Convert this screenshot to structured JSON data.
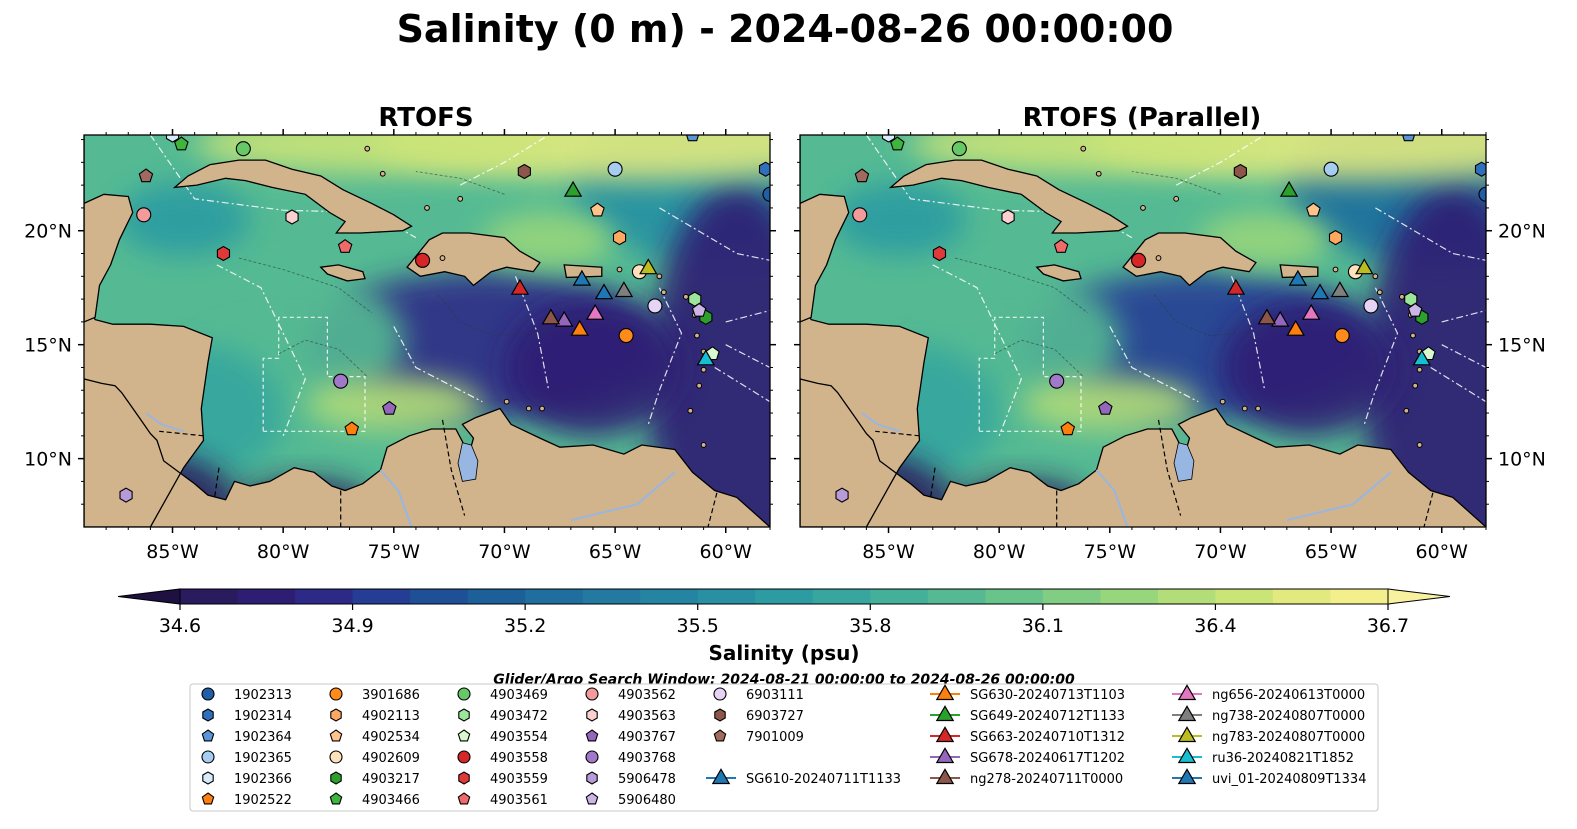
{
  "title": "Salinity (0 m) - 2024-08-26 00:00:00",
  "panels": [
    {
      "title": "RTOFS",
      "variant": "a"
    },
    {
      "title": "RTOFS (Parallel)",
      "variant": "b"
    }
  ],
  "map": {
    "extent_lon": [
      -89,
      -58
    ],
    "extent_lat": [
      7,
      24.2
    ],
    "lon_ticks": [
      {
        "value": -85,
        "label": "85°W"
      },
      {
        "value": -80,
        "label": "80°W"
      },
      {
        "value": -75,
        "label": "75°W"
      },
      {
        "value": -70,
        "label": "70°W"
      },
      {
        "value": -65,
        "label": "65°W"
      },
      {
        "value": -60,
        "label": "60°W"
      }
    ],
    "lat_ticks": [
      {
        "value": 10,
        "label": "10°N"
      },
      {
        "value": 15,
        "label": "15°N"
      },
      {
        "value": 20,
        "label": "20°N"
      }
    ],
    "land_color": "#d2b48c",
    "lake_color": "#97b6e1"
  },
  "colorbar": {
    "label": "Salinity (psu)",
    "min": 34.6,
    "max": 36.7,
    "ticks": [
      "34.6",
      "34.9",
      "35.2",
      "35.5",
      "35.8",
      "36.1",
      "36.4",
      "36.7"
    ],
    "colors": [
      "#2a1a5e",
      "#2d1e73",
      "#2d2a87",
      "#253d95",
      "#1f4f97",
      "#1c5f99",
      "#1f6e9d",
      "#23799f",
      "#2584a1",
      "#2890a2",
      "#2c9ba2",
      "#36a69f",
      "#44b09a",
      "#55ba93",
      "#69c48b",
      "#80cd83",
      "#98d67c",
      "#b2dd78",
      "#cbe478",
      "#e2ea7f",
      "#f3ef8c"
    ]
  },
  "legend": {
    "window_text": "Glider/Argo Search Window: 2024-08-21 00:00:00 to 2024-08-26 00:00:00",
    "entries": [
      {
        "label": "1902313",
        "marker": "circle",
        "color": "#1f5fa8"
      },
      {
        "label": "1902314",
        "marker": "hexagon",
        "color": "#2f6fbd"
      },
      {
        "label": "1902364",
        "marker": "pentagon",
        "color": "#5a95d8"
      },
      {
        "label": "1902365",
        "marker": "circle",
        "color": "#a6cdf0"
      },
      {
        "label": "1902366",
        "marker": "hexagon",
        "color": "#d8ebfb"
      },
      {
        "label": "1902522",
        "marker": "pentagon",
        "color": "#ff7f0e"
      },
      {
        "label": "3901686",
        "marker": "circle",
        "color": "#ff8c1a"
      },
      {
        "label": "4902113",
        "marker": "hexagon",
        "color": "#ffa860"
      },
      {
        "label": "4902534",
        "marker": "pentagon",
        "color": "#ffc48c"
      },
      {
        "label": "4902609",
        "marker": "circle",
        "color": "#ffe2bd"
      },
      {
        "label": "4903217",
        "marker": "hexagon",
        "color": "#2ca02c"
      },
      {
        "label": "4903466",
        "marker": "pentagon",
        "color": "#3fb43f"
      },
      {
        "label": "4903469",
        "marker": "circle",
        "color": "#66c866"
      },
      {
        "label": "4903472",
        "marker": "hexagon",
        "color": "#9be69b"
      },
      {
        "label": "4903554",
        "marker": "pentagon",
        "color": "#d8f8d0"
      },
      {
        "label": "4903558",
        "marker": "circle",
        "color": "#d62728"
      },
      {
        "label": "4903559",
        "marker": "hexagon",
        "color": "#e0393a"
      },
      {
        "label": "4903561",
        "marker": "pentagon",
        "color": "#f06a6a"
      },
      {
        "label": "4903562",
        "marker": "circle",
        "color": "#f39a9a"
      },
      {
        "label": "4903563",
        "marker": "hexagon",
        "color": "#fbd0d0"
      },
      {
        "label": "4903767",
        "marker": "pentagon",
        "color": "#9467bd"
      },
      {
        "label": "4903768",
        "marker": "circle",
        "color": "#a07ac8"
      },
      {
        "label": "5906478",
        "marker": "hexagon",
        "color": "#b79ad8"
      },
      {
        "label": "5906480",
        "marker": "pentagon",
        "color": "#cdb5e8"
      },
      {
        "label": "6903111",
        "marker": "circle",
        "color": "#e6d4f6"
      },
      {
        "label": "6903727",
        "marker": "hexagon",
        "color": "#8c564b"
      },
      {
        "label": "7901009",
        "marker": "pentagon",
        "color": "#a06a5f"
      },
      {
        "label": "SG610-20240711T1133",
        "marker": "triangle-line",
        "color": "#1f77b4"
      },
      {
        "label": "SG630-20240713T1103",
        "marker": "triangle-line",
        "color": "#ff7f0e"
      },
      {
        "label": "SG649-20240712T1133",
        "marker": "triangle-line",
        "color": "#2ca02c"
      },
      {
        "label": "SG663-20240710T1312",
        "marker": "triangle-line",
        "color": "#d62728"
      },
      {
        "label": "SG678-20240617T1202",
        "marker": "triangle-line",
        "color": "#9467bd"
      },
      {
        "label": "ng278-20240711T0000",
        "marker": "triangle-line",
        "color": "#8c564b"
      },
      {
        "label": "ng656-20240613T0000",
        "marker": "triangle-line",
        "color": "#e377c2"
      },
      {
        "label": "ng738-20240807T0000",
        "marker": "triangle-line",
        "color": "#7f7f7f"
      },
      {
        "label": "ng783-20240807T0000",
        "marker": "triangle-line",
        "color": "#bcbd22"
      },
      {
        "label": "ru36-20240821T1852",
        "marker": "triangle-line",
        "color": "#17becf"
      },
      {
        "label": "uvi_01-20240809T1334",
        "marker": "triangle-line",
        "color": "#1f77b4"
      }
    ]
  },
  "platforms": [
    {
      "id": "1902313",
      "lon": -58.0,
      "lat": 21.6
    },
    {
      "id": "1902314",
      "lon": -58.2,
      "lat": 22.7
    },
    {
      "id": "1902364",
      "lon": -61.5,
      "lat": 24.2
    },
    {
      "id": "1902365",
      "lon": -65.0,
      "lat": 22.7
    },
    {
      "id": "1902366",
      "lon": -85.0,
      "lat": 24.2
    },
    {
      "id": "1902522",
      "lon": -76.9,
      "lat": 11.3
    },
    {
      "id": "3901686",
      "lon": -64.5,
      "lat": 15.4
    },
    {
      "id": "4902113",
      "lon": -64.8,
      "lat": 19.7
    },
    {
      "id": "4902534",
      "lon": -65.8,
      "lat": 20.9
    },
    {
      "id": "4902609",
      "lon": -63.9,
      "lat": 18.2
    },
    {
      "id": "4903217",
      "lon": -60.9,
      "lat": 16.2
    },
    {
      "id": "4903466",
      "lon": -84.6,
      "lat": 23.8
    },
    {
      "id": "4903469",
      "lon": -81.8,
      "lat": 23.6
    },
    {
      "id": "4903472",
      "lon": -61.4,
      "lat": 17.0
    },
    {
      "id": "4903554",
      "lon": -60.6,
      "lat": 14.6
    },
    {
      "id": "4903558",
      "lon": -73.7,
      "lat": 18.7
    },
    {
      "id": "4903559",
      "lon": -82.7,
      "lat": 19.0
    },
    {
      "id": "4903561",
      "lon": -77.2,
      "lat": 19.3
    },
    {
      "id": "4903562",
      "lon": -86.3,
      "lat": 20.7
    },
    {
      "id": "4903563",
      "lon": -79.6,
      "lat": 20.6
    },
    {
      "id": "4903767",
      "lon": -75.2,
      "lat": 12.2
    },
    {
      "id": "4903768",
      "lon": -77.4,
      "lat": 13.4
    },
    {
      "id": "5906478",
      "lon": -87.1,
      "lat": 8.4
    },
    {
      "id": "5906480",
      "lon": -61.2,
      "lat": 16.5
    },
    {
      "id": "6903111",
      "lon": -63.2,
      "lat": 16.7
    },
    {
      "id": "6903727",
      "lon": -69.1,
      "lat": 22.6
    },
    {
      "id": "7901009",
      "lon": -86.2,
      "lat": 22.4
    },
    {
      "id": "SG610-20240711T1133",
      "lon": -66.5,
      "lat": 17.9
    },
    {
      "id": "SG630-20240713T1103",
      "lon": -66.6,
      "lat": 15.7
    },
    {
      "id": "SG649-20240712T1133",
      "lon": -66.9,
      "lat": 21.8
    },
    {
      "id": "SG663-20240710T1312",
      "lon": -69.3,
      "lat": 17.5
    },
    {
      "id": "SG678-20240617T1202",
      "lon": -67.3,
      "lat": 16.1
    },
    {
      "id": "ng278-20240711T0000",
      "lon": -67.9,
      "lat": 16.2
    },
    {
      "id": "ng656-20240613T0000",
      "lon": -65.9,
      "lat": 16.4
    },
    {
      "id": "ng738-20240807T0000",
      "lon": -64.6,
      "lat": 17.4
    },
    {
      "id": "ng783-20240807T0000",
      "lon": -63.5,
      "lat": 18.4
    },
    {
      "id": "ru36-20240821T1852",
      "lon": -60.9,
      "lat": 14.4
    },
    {
      "id": "uvi_01-20240809T1334",
      "lon": -65.5,
      "lat": 17.3
    }
  ]
}
